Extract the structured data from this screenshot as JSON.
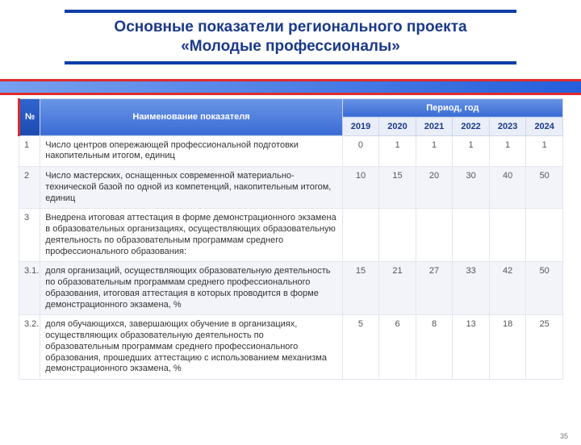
{
  "title_line1": "Основные показатели регионального проекта",
  "title_line2": "«Молодые профессионалы»",
  "slide_number": "35",
  "table": {
    "header": {
      "num": "№",
      "name": "Наименование показателя",
      "period": "Период, год",
      "years": [
        "2019",
        "2020",
        "2021",
        "2022",
        "2023",
        "2024"
      ]
    },
    "rows": [
      {
        "n": "1",
        "label": "Число центров опережающей профессиональной подготовки накопительным итогом, единиц",
        "v": [
          "0",
          "1",
          "1",
          "1",
          "1",
          "1"
        ]
      },
      {
        "n": "2",
        "label": "Число мастерских, оснащенных современной материально-технической базой по одной из компетенций, накопительным итогом, единиц",
        "v": [
          "10",
          "15",
          "20",
          "30",
          "40",
          "50"
        ]
      },
      {
        "n": "3",
        "label": "Внедрена итоговая аттестация в форме демонстрационного экзамена в образовательных организациях, осуществляющих образовательную деятельность по образовательным программам среднего профессионального образования:",
        "v": [
          "",
          "",
          "",
          "",
          "",
          ""
        ]
      },
      {
        "n": "3.1.",
        "label": "доля организаций, осуществляющих образовательную деятельность по образовательным программам среднего профессионального образования, итоговая аттестация в которых проводится в форме демонстрационного экзамена, %",
        "v": [
          "15",
          "21",
          "27",
          "33",
          "42",
          "50"
        ]
      },
      {
        "n": "3.2.",
        "label": "доля обучающихся, завершающих обучение в организациях, осуществляющих образовательную деятельность по образовательным программам среднего профессионального образования, прошедших аттестацию с использованием механизма демонстрационного экзамена, %",
        "v": [
          "5",
          "6",
          "8",
          "13",
          "18",
          "25"
        ]
      }
    ]
  }
}
